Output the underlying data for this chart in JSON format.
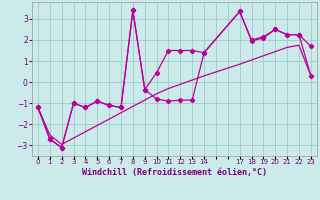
{
  "xlabel": "Windchill (Refroidissement éolien,°C)",
  "background_color": "#cceaea",
  "grid_color": "#99cccc",
  "line_color": "#bb0099",
  "ylim": [
    -3.5,
    3.8
  ],
  "xlim": [
    -0.5,
    23.5
  ],
  "yticks": [
    -3,
    -2,
    -1,
    0,
    1,
    2,
    3
  ],
  "xtick_labels": [
    "0",
    "1",
    "2",
    "3",
    "4",
    "5",
    "6",
    "7",
    "8",
    "9",
    "10",
    "11",
    "12",
    "13",
    "14",
    "",
    "",
    "17",
    "18",
    "19",
    "20",
    "21",
    "22",
    "23"
  ],
  "series1_x": [
    0,
    1,
    2,
    3,
    4,
    5,
    6,
    7,
    8,
    9,
    10,
    11,
    12,
    13,
    14,
    17,
    18,
    19,
    20,
    21,
    22,
    23
  ],
  "series1_y": [
    -1.2,
    -2.7,
    -3.1,
    -1.0,
    -1.2,
    -0.9,
    -1.1,
    -1.2,
    3.4,
    -0.35,
    -0.8,
    -0.9,
    -0.85,
    -0.85,
    1.4,
    3.35,
    1.95,
    2.1,
    2.5,
    2.25,
    2.25,
    1.7
  ],
  "series2_x": [
    0,
    1,
    2,
    3,
    4,
    5,
    6,
    7,
    8,
    9,
    10,
    11,
    12,
    13,
    14,
    17,
    18,
    19,
    20,
    21,
    22,
    23
  ],
  "series2_y": [
    -1.2,
    -2.7,
    -3.1,
    -1.0,
    -1.2,
    -0.9,
    -1.1,
    -1.2,
    3.4,
    -0.35,
    0.45,
    1.5,
    1.5,
    1.5,
    1.4,
    3.35,
    2.0,
    2.15,
    2.5,
    2.25,
    2.25,
    0.3
  ],
  "series3_x": [
    0,
    1,
    2,
    3,
    4,
    5,
    6,
    7,
    8,
    9,
    10,
    11,
    12,
    13,
    14,
    17,
    18,
    19,
    20,
    21,
    22,
    23
  ],
  "series3_y": [
    -1.2,
    -2.5,
    -2.95,
    -2.65,
    -2.35,
    -2.05,
    -1.75,
    -1.45,
    -1.15,
    -0.85,
    -0.55,
    -0.3,
    -0.1,
    0.1,
    0.3,
    0.85,
    1.05,
    1.25,
    1.45,
    1.65,
    1.75,
    0.3
  ]
}
